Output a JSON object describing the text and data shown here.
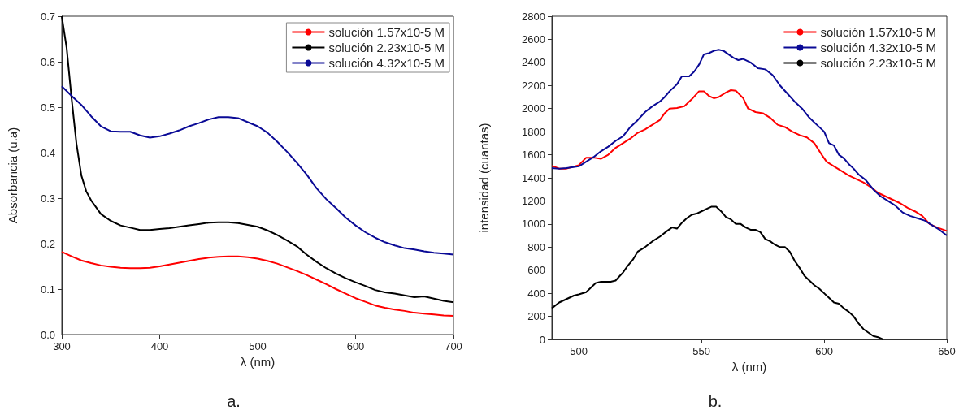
{
  "chart_data": [
    {
      "type": "line",
      "xlabel": "λ (nm)",
      "ylabel": "Absorbancia (u.a)",
      "xlim": [
        300,
        700
      ],
      "xticks": [
        300,
        400,
        500,
        600,
        700
      ],
      "ylim": [
        0,
        0.7
      ],
      "yticks": [
        {
          "value": 0,
          "label": "0.0"
        },
        0.1,
        0.2,
        0.3,
        0.4,
        0.5,
        0.6,
        0.7
      ],
      "grid": false,
      "legend": "top right",
      "annotations": [
        "a."
      ],
      "series": [
        {
          "name": "solución 1.57x10-5 M",
          "color": "#ff0000",
          "x": [
            300,
            310,
            320,
            330,
            340,
            350,
            360,
            370,
            380,
            390,
            400,
            410,
            420,
            430,
            440,
            450,
            460,
            470,
            480,
            490,
            500,
            510,
            520,
            530,
            540,
            550,
            560,
            570,
            580,
            590,
            600,
            610,
            620,
            630,
            640,
            650,
            660,
            670,
            680,
            690,
            700
          ],
          "values": [
            0.182,
            0.172,
            0.163,
            0.157,
            0.152,
            0.149,
            0.147,
            0.146,
            0.146,
            0.147,
            0.15,
            0.154,
            0.158,
            0.162,
            0.166,
            0.169,
            0.171,
            0.172,
            0.172,
            0.17,
            0.167,
            0.162,
            0.156,
            0.148,
            0.14,
            0.131,
            0.121,
            0.111,
            0.1,
            0.09,
            0.08,
            0.072,
            0.064,
            0.059,
            0.055,
            0.052,
            0.048,
            0.046,
            0.044,
            0.042,
            0.041
          ]
        },
        {
          "name": "solución 2.23x10-5 M",
          "color": "#000000",
          "x": [
            300,
            305,
            310,
            315,
            320,
            325,
            330,
            340,
            350,
            360,
            370,
            380,
            390,
            400,
            410,
            420,
            430,
            440,
            450,
            460,
            470,
            480,
            490,
            500,
            510,
            520,
            530,
            540,
            550,
            560,
            570,
            580,
            590,
            600,
            610,
            620,
            630,
            640,
            650,
            660,
            670,
            680,
            690,
            700
          ],
          "values": [
            0.7,
            0.63,
            0.52,
            0.42,
            0.35,
            0.315,
            0.295,
            0.265,
            0.25,
            0.24,
            0.235,
            0.23,
            0.23,
            0.232,
            0.234,
            0.237,
            0.24,
            0.243,
            0.246,
            0.247,
            0.247,
            0.245,
            0.241,
            0.237,
            0.229,
            0.219,
            0.207,
            0.194,
            0.176,
            0.16,
            0.146,
            0.134,
            0.124,
            0.115,
            0.107,
            0.098,
            0.093,
            0.09,
            0.086,
            0.082,
            0.084,
            0.079,
            0.074,
            0.071
          ]
        },
        {
          "name": "solución 4.32x10-5 M",
          "color": "#0a0a96",
          "x": [
            300,
            310,
            320,
            330,
            340,
            350,
            360,
            370,
            380,
            390,
            400,
            410,
            420,
            430,
            440,
            450,
            460,
            470,
            480,
            490,
            500,
            510,
            520,
            530,
            540,
            550,
            560,
            570,
            580,
            590,
            600,
            610,
            620,
            630,
            640,
            650,
            660,
            670,
            680,
            690,
            700
          ],
          "values": [
            0.546,
            0.525,
            0.505,
            0.48,
            0.458,
            0.447,
            0.446,
            0.446,
            0.438,
            0.433,
            0.436,
            0.442,
            0.449,
            0.458,
            0.465,
            0.473,
            0.478,
            0.478,
            0.476,
            0.467,
            0.458,
            0.444,
            0.424,
            0.402,
            0.378,
            0.352,
            0.322,
            0.298,
            0.278,
            0.257,
            0.24,
            0.225,
            0.213,
            0.203,
            0.196,
            0.19,
            0.187,
            0.183,
            0.18,
            0.178,
            0.176
          ]
        }
      ]
    },
    {
      "type": "line",
      "xlabel": "λ (nm)",
      "ylabel": "intensidad (cuantas)",
      "xlim": [
        489,
        650
      ],
      "xticks": [
        500,
        550,
        600,
        650
      ],
      "ylim": [
        0,
        2800
      ],
      "yticks": [
        0,
        200,
        400,
        600,
        800,
        1000,
        1200,
        1400,
        1600,
        1800,
        2000,
        2200,
        2400,
        2600,
        2800
      ],
      "grid": false,
      "legend": "top right",
      "annotations": [
        "b."
      ],
      "series": [
        {
          "name": "solución 1.57x10-5 M",
          "color": "#ff0000",
          "x": [
            489,
            492,
            495,
            500,
            503,
            506,
            509,
            512,
            515,
            518,
            521,
            524,
            527,
            530,
            533,
            535,
            537,
            540,
            543,
            546,
            549,
            551,
            553,
            555,
            557,
            560,
            562,
            564,
            567,
            569,
            572,
            575,
            578,
            581,
            584,
            587,
            590,
            593,
            596,
            599,
            601,
            604,
            607,
            610,
            613,
            616,
            619,
            622,
            625,
            628,
            631,
            634,
            637,
            640,
            643,
            646,
            650
          ],
          "values": [
            1505,
            1480,
            1480,
            1510,
            1575,
            1575,
            1565,
            1600,
            1660,
            1700,
            1740,
            1790,
            1820,
            1860,
            1900,
            1960,
            2000,
            2005,
            2020,
            2080,
            2150,
            2150,
            2110,
            2090,
            2100,
            2140,
            2160,
            2155,
            2090,
            2000,
            1970,
            1960,
            1920,
            1860,
            1840,
            1800,
            1770,
            1750,
            1700,
            1600,
            1540,
            1500,
            1460,
            1420,
            1390,
            1360,
            1320,
            1270,
            1240,
            1210,
            1180,
            1140,
            1110,
            1070,
            1000,
            970,
            940
          ]
        },
        {
          "name": "solución 4.32x10-5 M",
          "color": "#0a0a96",
          "x": [
            489,
            492,
            495,
            500,
            503,
            506,
            509,
            512,
            515,
            518,
            521,
            524,
            527,
            530,
            533,
            535,
            537,
            540,
            542,
            545,
            547,
            549,
            551,
            553,
            555,
            557,
            559,
            561,
            563,
            565,
            567,
            570,
            573,
            576,
            579,
            582,
            585,
            588,
            591,
            594,
            597,
            600,
            602,
            604,
            606,
            608,
            610,
            612,
            614,
            617,
            620,
            623,
            626,
            629,
            632,
            635,
            638,
            641,
            644,
            647,
            650
          ],
          "values": [
            1485,
            1480,
            1485,
            1500,
            1540,
            1580,
            1630,
            1670,
            1720,
            1760,
            1840,
            1900,
            1970,
            2020,
            2060,
            2100,
            2150,
            2210,
            2280,
            2280,
            2320,
            2380,
            2470,
            2480,
            2500,
            2510,
            2500,
            2470,
            2440,
            2420,
            2430,
            2400,
            2350,
            2340,
            2290,
            2200,
            2130,
            2060,
            2000,
            1920,
            1860,
            1800,
            1700,
            1680,
            1600,
            1570,
            1520,
            1480,
            1430,
            1380,
            1300,
            1240,
            1200,
            1160,
            1100,
            1070,
            1050,
            1030,
            990,
            950,
            900
          ]
        },
        {
          "name": "solución 2.23x10-5 M",
          "color": "#000000",
          "x": [
            489,
            492,
            495,
            498,
            500,
            503,
            505,
            507,
            509,
            511,
            513,
            515,
            518,
            520,
            522,
            524,
            527,
            530,
            533,
            536,
            538,
            540,
            542,
            544,
            546,
            548,
            550,
            552,
            554,
            556,
            558,
            560,
            562,
            564,
            566,
            568,
            570,
            572,
            574,
            576,
            578,
            580,
            582,
            584,
            586,
            588,
            590,
            592,
            594,
            596,
            598,
            600,
            602,
            604,
            606,
            608,
            610,
            612,
            614,
            616,
            618,
            620,
            622,
            624
          ],
          "values": [
            270,
            320,
            350,
            380,
            390,
            410,
            450,
            490,
            500,
            500,
            500,
            510,
            580,
            640,
            690,
            760,
            800,
            850,
            890,
            940,
            970,
            960,
            1010,
            1050,
            1080,
            1090,
            1110,
            1130,
            1150,
            1150,
            1110,
            1060,
            1040,
            1000,
            1000,
            970,
            950,
            950,
            930,
            870,
            850,
            820,
            800,
            800,
            760,
            680,
            620,
            550,
            510,
            470,
            440,
            400,
            360,
            320,
            310,
            270,
            240,
            200,
            140,
            90,
            60,
            30,
            20,
            0
          ]
        }
      ]
    }
  ]
}
